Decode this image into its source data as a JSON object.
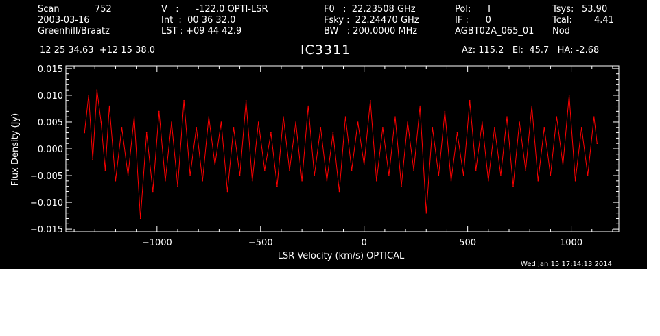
{
  "header": {
    "scan_label": "Scan",
    "scan_value": "752",
    "date": "2003-03-16",
    "observers": "Greenhill/Braatz",
    "v_line": "V   :      -122.0 OPTI-LSR",
    "int_line": "Int  :  00 36 32.0",
    "lst_line": "LST : +09 44 42.9",
    "f0_line": "F0   :  22.23508 GHz",
    "fsky_line": "Fsky :  22.24470 GHz",
    "bw_line": "BW   : 200.0000 MHz",
    "pol_line": "Pol:      I",
    "if_line": "IF :      0",
    "project": "AGBT02A_065_01",
    "tsys_label": "Tsys:",
    "tsys_value": "53.90",
    "tcal_label": "Tcal:",
    "tcal_value": "4.41",
    "mode": "Nod",
    "coords": "12 25 34.63  +12 15 38.0",
    "source": "IC3311",
    "az_el_ha": "Az: 115.2   El:  45.7   HA: -2.68"
  },
  "timestamp": "Wed Jan 15 17:14:13 2014",
  "colors": {
    "background": "#000000",
    "axes": "#ffffff",
    "trace": "#ff0000"
  },
  "chart_data": {
    "type": "line",
    "xlabel": "LSR Velocity (km/s) OPTICAL",
    "ylabel": "Flux Density (Jy)",
    "xlim": [
      -1440,
      1230
    ],
    "ylim": [
      -0.0155,
      0.0155
    ],
    "xticks": [
      -1000,
      -500,
      0,
      500,
      1000
    ],
    "xtick_labels": [
      "−1000",
      "−500",
      "0",
      "500",
      "1000"
    ],
    "yticks": [
      0.015,
      0.01,
      0.005,
      0.0,
      -0.005,
      -0.01,
      -0.015
    ],
    "ytick_labels": [
      "0.015",
      "0.010",
      "0.005",
      "0.000",
      "−0.005",
      "−0.010",
      "−0.015"
    ],
    "grid": false,
    "series": [
      {
        "color": "#ff0000",
        "x": [
          -1350,
          -1330,
          -1310,
          -1290,
          -1270,
          -1250,
          -1230,
          -1200,
          -1170,
          -1140,
          -1110,
          -1080,
          -1050,
          -1020,
          -990,
          -960,
          -930,
          -900,
          -870,
          -840,
          -810,
          -780,
          -750,
          -720,
          -690,
          -660,
          -630,
          -600,
          -570,
          -540,
          -510,
          -480,
          -450,
          -420,
          -390,
          -360,
          -330,
          -300,
          -270,
          -240,
          -210,
          -180,
          -150,
          -120,
          -90,
          -60,
          -30,
          0,
          30,
          60,
          90,
          120,
          150,
          180,
          210,
          240,
          270,
          300,
          330,
          360,
          390,
          420,
          450,
          480,
          510,
          540,
          570,
          600,
          630,
          660,
          690,
          720,
          750,
          780,
          810,
          840,
          870,
          900,
          930,
          960,
          990,
          1020,
          1050,
          1080,
          1110,
          1125
        ],
        "y": [
          0.003,
          0.01,
          -0.002,
          0.011,
          0.005,
          -0.004,
          0.008,
          -0.006,
          0.004,
          -0.005,
          0.006,
          -0.013,
          0.003,
          -0.008,
          0.007,
          -0.006,
          0.005,
          -0.007,
          0.009,
          -0.005,
          0.004,
          -0.006,
          0.006,
          -0.003,
          0.005,
          -0.008,
          0.004,
          -0.005,
          0.009,
          -0.006,
          0.005,
          -0.004,
          0.003,
          -0.007,
          0.006,
          -0.004,
          0.005,
          -0.006,
          0.008,
          -0.005,
          0.004,
          -0.006,
          0.003,
          -0.008,
          0.006,
          -0.004,
          0.005,
          -0.003,
          0.009,
          -0.006,
          0.004,
          -0.005,
          0.006,
          -0.007,
          0.005,
          -0.004,
          0.008,
          -0.012,
          0.004,
          -0.005,
          0.007,
          -0.006,
          0.003,
          -0.005,
          0.009,
          -0.004,
          0.005,
          -0.006,
          0.004,
          -0.005,
          0.006,
          -0.007,
          0.005,
          -0.004,
          0.008,
          -0.006,
          0.004,
          -0.005,
          0.006,
          -0.003,
          0.01,
          -0.006,
          0.004,
          -0.005,
          0.006,
          0.001
        ]
      }
    ]
  }
}
